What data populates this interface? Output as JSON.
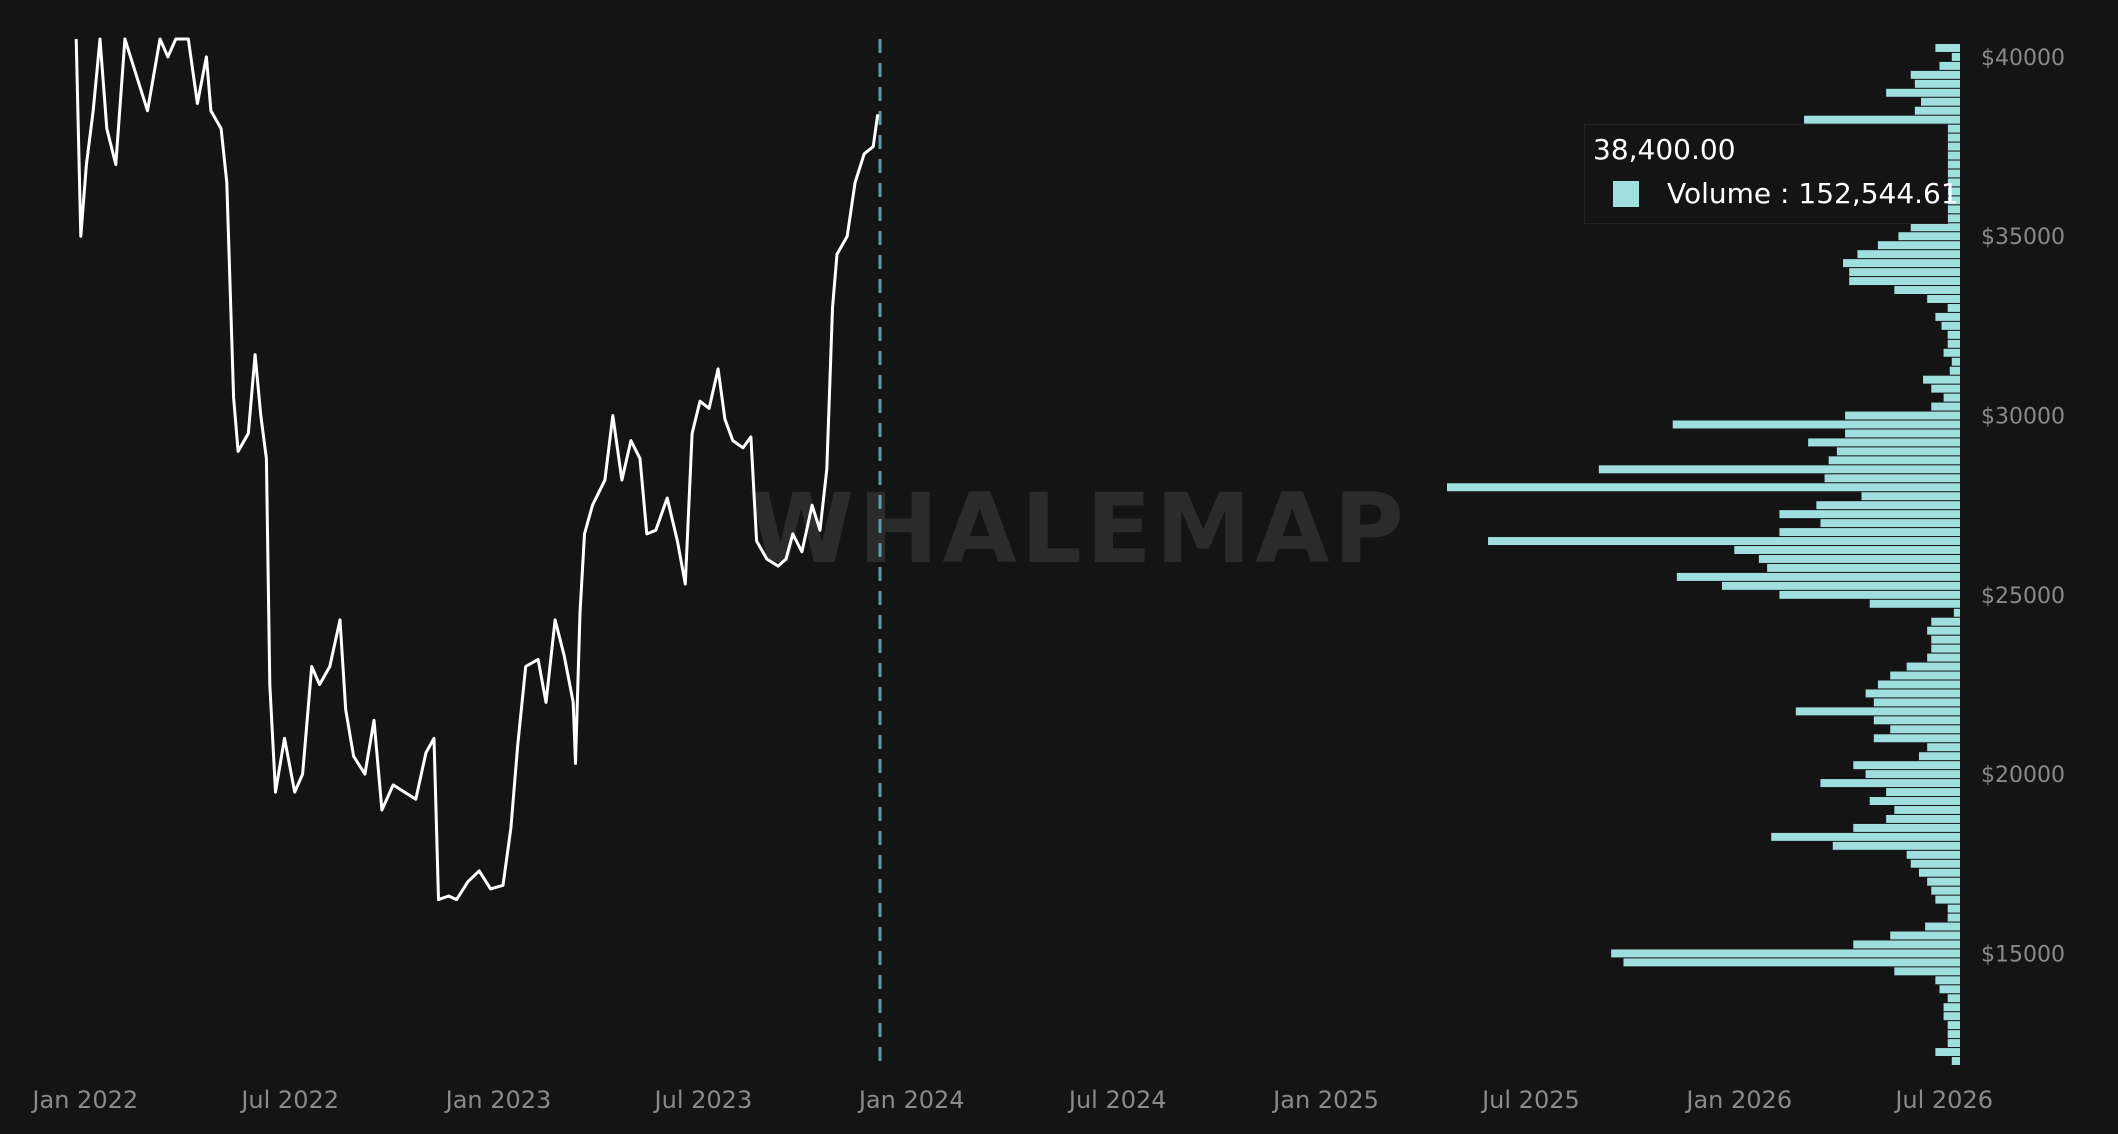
{
  "watermark": "WHALEMAP",
  "tooltip": {
    "price": "38,400.00",
    "volume_label": "Volume : 152,544.61"
  },
  "colors": {
    "background": "#141414",
    "price_line": "#ffffff",
    "volume_bars": "#9fdfe0",
    "current_marker": "#5e9ea8",
    "tick_text": "#8a8a8a"
  },
  "chart_data": {
    "type": "line",
    "x_ticks": [
      "Jan 2022",
      "Jul 2022",
      "Jan 2023",
      "Jul 2023",
      "Jan 2024",
      "Jul 2024",
      "Jan 2025",
      "Jul 2025",
      "Jan 2026",
      "Jul 2026"
    ],
    "y_ticks": [
      "$40000",
      "$35000",
      "$30000",
      "$25000",
      "$20000",
      "$15000"
    ],
    "xlim": [
      "2021-11-22",
      "2026-07-15"
    ],
    "ylim": [
      12000,
      40500
    ],
    "current_date_marker": "2023-12-04",
    "series": [
      {
        "values": [
          [
            "2021-12-24",
            40500
          ],
          [
            "2021-12-28",
            35000
          ],
          [
            "2022-01-02",
            37000
          ],
          [
            "2022-01-08",
            38500
          ],
          [
            "2022-01-14",
            40500
          ],
          [
            "2022-01-20",
            38000
          ],
          [
            "2022-01-28",
            37000
          ],
          [
            "2022-02-05",
            40500
          ],
          [
            "2022-02-15",
            39500
          ],
          [
            "2022-02-25",
            38500
          ],
          [
            "2022-03-08",
            40500
          ],
          [
            "2022-03-15",
            40000
          ],
          [
            "2022-03-22",
            40500
          ],
          [
            "2022-04-02",
            40500
          ],
          [
            "2022-04-10",
            38700
          ],
          [
            "2022-04-18",
            40000
          ],
          [
            "2022-04-22",
            38500
          ],
          [
            "2022-05-01",
            38000
          ],
          [
            "2022-05-06",
            36500
          ],
          [
            "2022-05-12",
            30500
          ],
          [
            "2022-05-16",
            29000
          ],
          [
            "2022-05-25",
            29500
          ],
          [
            "2022-05-31",
            31700
          ],
          [
            "2022-06-05",
            30000
          ],
          [
            "2022-06-10",
            28800
          ],
          [
            "2022-06-13",
            22500
          ],
          [
            "2022-06-18",
            19500
          ],
          [
            "2022-06-26",
            21000
          ],
          [
            "2022-07-05",
            19500
          ],
          [
            "2022-07-12",
            20000
          ],
          [
            "2022-07-20",
            23000
          ],
          [
            "2022-07-27",
            22500
          ],
          [
            "2022-08-05",
            23000
          ],
          [
            "2022-08-14",
            24300
          ],
          [
            "2022-08-19",
            21800
          ],
          [
            "2022-08-26",
            20500
          ],
          [
            "2022-09-05",
            20000
          ],
          [
            "2022-09-13",
            21500
          ],
          [
            "2022-09-20",
            19000
          ],
          [
            "2022-09-30",
            19700
          ],
          [
            "2022-10-10",
            19500
          ],
          [
            "2022-10-20",
            19300
          ],
          [
            "2022-10-29",
            20600
          ],
          [
            "2022-11-05",
            21000
          ],
          [
            "2022-11-09",
            16500
          ],
          [
            "2022-11-18",
            16600
          ],
          [
            "2022-11-25",
            16500
          ],
          [
            "2022-12-05",
            17000
          ],
          [
            "2022-12-15",
            17300
          ],
          [
            "2022-12-25",
            16800
          ],
          [
            "2023-01-05",
            16900
          ],
          [
            "2023-01-12",
            18500
          ],
          [
            "2023-01-18",
            20800
          ],
          [
            "2023-01-25",
            23000
          ],
          [
            "2023-02-05",
            23200
          ],
          [
            "2023-02-12",
            22000
          ],
          [
            "2023-02-20",
            24300
          ],
          [
            "2023-02-28",
            23300
          ],
          [
            "2023-03-08",
            22000
          ],
          [
            "2023-03-10",
            20300
          ],
          [
            "2023-03-14",
            24500
          ],
          [
            "2023-03-18",
            26700
          ],
          [
            "2023-03-25",
            27500
          ],
          [
            "2023-04-05",
            28200
          ],
          [
            "2023-04-12",
            30000
          ],
          [
            "2023-04-20",
            28200
          ],
          [
            "2023-04-28",
            29300
          ],
          [
            "2023-05-06",
            28800
          ],
          [
            "2023-05-12",
            26700
          ],
          [
            "2023-05-20",
            26800
          ],
          [
            "2023-05-30",
            27700
          ],
          [
            "2023-06-08",
            26500
          ],
          [
            "2023-06-15",
            25300
          ],
          [
            "2023-06-21",
            29500
          ],
          [
            "2023-06-28",
            30400
          ],
          [
            "2023-07-06",
            30200
          ],
          [
            "2023-07-14",
            31300
          ],
          [
            "2023-07-20",
            29900
          ],
          [
            "2023-07-27",
            29300
          ],
          [
            "2023-08-05",
            29100
          ],
          [
            "2023-08-12",
            29400
          ],
          [
            "2023-08-17",
            26500
          ],
          [
            "2023-08-26",
            26000
          ],
          [
            "2023-09-05",
            25800
          ],
          [
            "2023-09-12",
            26000
          ],
          [
            "2023-09-18",
            26700
          ],
          [
            "2023-09-26",
            26200
          ],
          [
            "2023-10-05",
            27500
          ],
          [
            "2023-10-12",
            26800
          ],
          [
            "2023-10-18",
            28500
          ],
          [
            "2023-10-23",
            33000
          ],
          [
            "2023-10-27",
            34500
          ],
          [
            "2023-11-05",
            35000
          ],
          [
            "2023-11-12",
            36500
          ],
          [
            "2023-11-20",
            37300
          ],
          [
            "2023-11-28",
            37500
          ],
          [
            "2023-12-02",
            38400
          ]
        ]
      }
    ],
    "volume_profile": {
      "name": "Volume",
      "bins": [
        [
          40250,
          60000
        ],
        [
          40000,
          20000
        ],
        [
          39750,
          50000
        ],
        [
          39500,
          120000
        ],
        [
          39250,
          110000
        ],
        [
          39000,
          180000
        ],
        [
          38750,
          95000
        ],
        [
          38500,
          110000
        ],
        [
          38250,
          380000
        ],
        [
          38000,
          50000
        ],
        [
          37750,
          30000
        ],
        [
          37500,
          30000
        ],
        [
          37250,
          30000
        ],
        [
          37000,
          30000
        ],
        [
          36750,
          30000
        ],
        [
          36500,
          30000
        ],
        [
          36250,
          30000
        ],
        [
          36000,
          30000
        ],
        [
          35750,
          30000
        ],
        [
          35500,
          30000
        ],
        [
          35250,
          120000
        ],
        [
          35000,
          150000
        ],
        [
          34750,
          200000
        ],
        [
          34500,
          250000
        ],
        [
          34250,
          285000
        ],
        [
          34000,
          270000
        ],
        [
          33750,
          270000
        ],
        [
          33500,
          160000
        ],
        [
          33250,
          80000
        ],
        [
          33000,
          30000
        ],
        [
          32750,
          60000
        ],
        [
          32500,
          45000
        ],
        [
          32250,
          30000
        ],
        [
          32000,
          30000
        ],
        [
          31750,
          40000
        ],
        [
          31500,
          20000
        ],
        [
          31250,
          25000
        ],
        [
          31000,
          90000
        ],
        [
          30750,
          70000
        ],
        [
          30500,
          40000
        ],
        [
          30250,
          70000
        ],
        [
          30000,
          280000
        ],
        [
          29750,
          700000
        ],
        [
          29500,
          280000
        ],
        [
          29250,
          370000
        ],
        [
          29000,
          300000
        ],
        [
          28750,
          320000
        ],
        [
          28500,
          880000
        ],
        [
          28250,
          330000
        ],
        [
          28000,
          1250000
        ],
        [
          27750,
          240000
        ],
        [
          27500,
          350000
        ],
        [
          27250,
          440000
        ],
        [
          27000,
          340000
        ],
        [
          26750,
          440000
        ],
        [
          26500,
          1150000
        ],
        [
          26250,
          550000
        ],
        [
          26000,
          490000
        ],
        [
          25750,
          470000
        ],
        [
          25500,
          690000
        ],
        [
          25250,
          580000
        ],
        [
          25000,
          440000
        ],
        [
          24750,
          220000
        ],
        [
          24500,
          15000
        ],
        [
          24250,
          70000
        ],
        [
          24000,
          80000
        ],
        [
          23750,
          70000
        ],
        [
          23500,
          70000
        ],
        [
          23250,
          80000
        ],
        [
          23000,
          130000
        ],
        [
          22750,
          170000
        ],
        [
          22500,
          200000
        ],
        [
          22250,
          230000
        ],
        [
          22000,
          210000
        ],
        [
          21750,
          400000
        ],
        [
          21500,
          210000
        ],
        [
          21250,
          170000
        ],
        [
          21000,
          210000
        ],
        [
          20750,
          80000
        ],
        [
          20500,
          100000
        ],
        [
          20250,
          260000
        ],
        [
          20000,
          230000
        ],
        [
          19750,
          340000
        ],
        [
          19500,
          180000
        ],
        [
          19250,
          220000
        ],
        [
          19000,
          160000
        ],
        [
          18750,
          180000
        ],
        [
          18500,
          260000
        ],
        [
          18250,
          460000
        ],
        [
          18000,
          310000
        ],
        [
          17750,
          130000
        ],
        [
          17500,
          120000
        ],
        [
          17250,
          100000
        ],
        [
          17000,
          80000
        ],
        [
          16750,
          70000
        ],
        [
          16500,
          60000
        ],
        [
          16250,
          30000
        ],
        [
          16000,
          30000
        ],
        [
          15750,
          85000
        ],
        [
          15500,
          170000
        ],
        [
          15250,
          260000
        ],
        [
          15000,
          850000
        ],
        [
          14750,
          820000
        ],
        [
          14500,
          160000
        ],
        [
          14250,
          60000
        ],
        [
          14000,
          50000
        ],
        [
          13750,
          30000
        ],
        [
          13500,
          40000
        ],
        [
          13250,
          40000
        ],
        [
          13000,
          30000
        ],
        [
          12750,
          30000
        ],
        [
          12500,
          30000
        ],
        [
          12250,
          60000
        ],
        [
          12000,
          20000
        ]
      ]
    }
  }
}
